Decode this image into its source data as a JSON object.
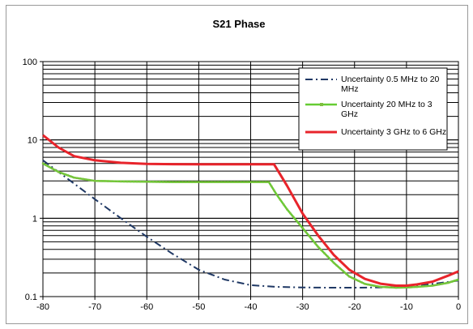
{
  "chart_data": {
    "type": "line",
    "title": "S21 Phase",
    "xlabel": "",
    "ylabel": "",
    "xlim": [
      -80,
      0
    ],
    "ylim": [
      0.1,
      100
    ],
    "y_scale": "log",
    "x_ticks": [
      -80,
      -70,
      -60,
      -50,
      -40,
      -30,
      -20,
      -10,
      0
    ],
    "x_tick_labels": [
      "-80",
      "-70",
      "-60",
      "-50",
      "-40",
      "-30",
      "-20",
      "-10",
      "0"
    ],
    "y_ticks": [
      0.1,
      1,
      10,
      100
    ],
    "y_tick_labels": [
      "0.1",
      "1",
      "10",
      "100"
    ],
    "grid": true,
    "legend_position": "top-right",
    "series": [
      {
        "name": "Uncertainty 0.5 MHz to 20 MHz",
        "legend_lines": [
          "Uncertainty 0.5 MHz to 20",
          "MHz"
        ],
        "color": "#1f3864",
        "style": "dash-dot",
        "x": [
          -80,
          -75,
          -70,
          -65,
          -60,
          -55,
          -50,
          -45,
          -40,
          -35,
          -30,
          -25,
          -20,
          -15,
          -10,
          -5,
          0
        ],
        "y": [
          5.5,
          3.1,
          1.75,
          1.0,
          0.58,
          0.35,
          0.22,
          0.165,
          0.14,
          0.133,
          0.131,
          0.13,
          0.13,
          0.131,
          0.135,
          0.145,
          0.16
        ]
      },
      {
        "name": "Uncertainty 20 MHz to 3 GHz",
        "legend_lines": [
          "Uncertainty 20 MHz to  3",
          "GHz"
        ],
        "color": "#66cc33",
        "style": "line-marker",
        "x": [
          -80,
          -77,
          -74,
          -70,
          -65,
          -60,
          -55,
          -50,
          -45,
          -40,
          -36.5,
          -35,
          -33,
          -30,
          -27,
          -24,
          -21,
          -18,
          -15,
          -12,
          -10,
          -8,
          -5,
          -2,
          0
        ],
        "y": [
          5.0,
          3.9,
          3.3,
          3.0,
          2.95,
          2.92,
          2.9,
          2.9,
          2.9,
          2.9,
          2.9,
          2.0,
          1.3,
          0.75,
          0.43,
          0.27,
          0.18,
          0.145,
          0.133,
          0.13,
          0.131,
          0.133,
          0.138,
          0.15,
          0.165
        ]
      },
      {
        "name": "Uncertainty 3 GHz to 6 GHz",
        "legend_lines": [
          "Uncertainty 3 GHz to 6 GHz"
        ],
        "color": "#e8242b",
        "style": "solid",
        "x": [
          -80,
          -77,
          -74,
          -70,
          -65,
          -60,
          -55,
          -50,
          -45,
          -40,
          -35.5,
          -33,
          -30,
          -27,
          -24,
          -21,
          -18,
          -15,
          -12,
          -10,
          -8,
          -5,
          -2,
          0
        ],
        "y": [
          11.5,
          8.0,
          6.2,
          5.5,
          5.1,
          4.95,
          4.9,
          4.88,
          4.88,
          4.88,
          4.88,
          2.6,
          1.15,
          0.6,
          0.34,
          0.22,
          0.168,
          0.146,
          0.138,
          0.138,
          0.143,
          0.155,
          0.185,
          0.21
        ]
      }
    ]
  }
}
